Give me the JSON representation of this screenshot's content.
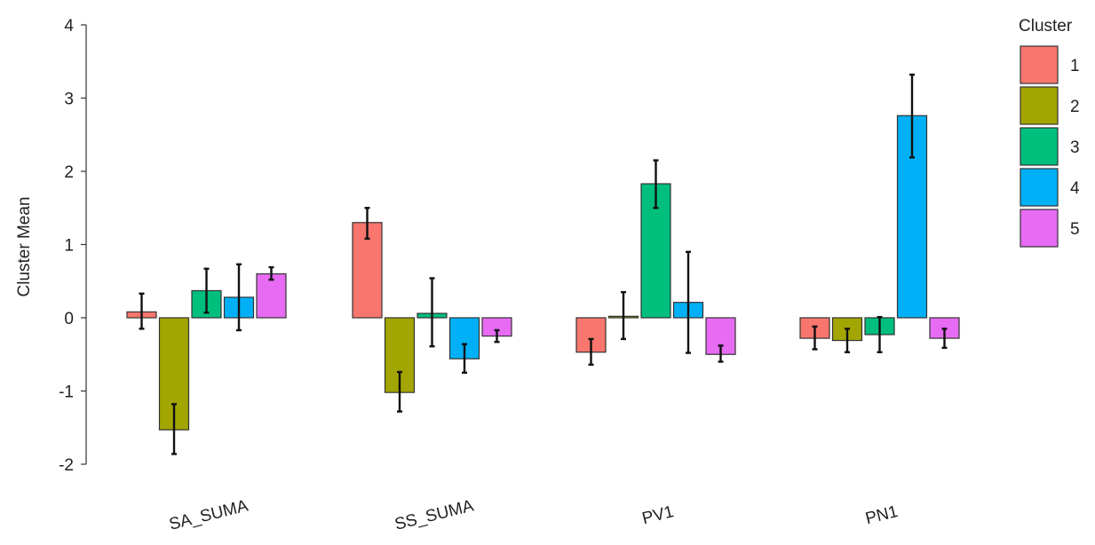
{
  "chart_data": {
    "type": "bar",
    "ylabel": "Cluster Mean",
    "xlabel": "",
    "ylim": [
      -2,
      4
    ],
    "yticks": [
      -2,
      -1,
      0,
      1,
      2,
      3,
      4
    ],
    "yticklabels": [
      "-2",
      "-1",
      "0",
      "1",
      "2",
      "3",
      "4"
    ],
    "categories": [
      "SA_SUMA",
      "SS_SUMA",
      "PV1",
      "PN1"
    ],
    "series": [
      {
        "name": "1",
        "color": "#F8766D",
        "values": [
          0.08,
          1.3,
          -0.47,
          -0.28
        ],
        "err_low": [
          -0.15,
          1.08,
          -0.64,
          -0.43
        ],
        "err_high": [
          0.33,
          1.5,
          -0.29,
          -0.12
        ]
      },
      {
        "name": "2",
        "color": "#A3A500",
        "values": [
          -1.53,
          -1.02,
          0.02,
          -0.31
        ],
        "err_low": [
          -1.86,
          -1.28,
          -0.29,
          -0.47
        ],
        "err_high": [
          -1.18,
          -0.74,
          0.35,
          -0.15
        ]
      },
      {
        "name": "3",
        "color": "#00BF7D",
        "values": [
          0.37,
          0.06,
          1.83,
          -0.23
        ],
        "err_low": [
          0.07,
          -0.39,
          1.5,
          -0.47
        ],
        "err_high": [
          0.67,
          0.54,
          2.15,
          0.01
        ]
      },
      {
        "name": "4",
        "color": "#00B0F6",
        "values": [
          0.28,
          -0.56,
          0.21,
          2.76
        ],
        "err_low": [
          -0.17,
          -0.75,
          -0.48,
          2.19
        ],
        "err_high": [
          0.73,
          -0.36,
          0.9,
          3.32
        ]
      },
      {
        "name": "5",
        "color": "#E76BF3",
        "values": [
          0.6,
          -0.25,
          -0.5,
          -0.28
        ],
        "err_low": [
          0.52,
          -0.33,
          -0.6,
          -0.41
        ],
        "err_high": [
          0.69,
          -0.17,
          -0.38,
          -0.15
        ]
      }
    ],
    "legend": {
      "title": "Cluster",
      "position": "right"
    },
    "grid": false
  }
}
